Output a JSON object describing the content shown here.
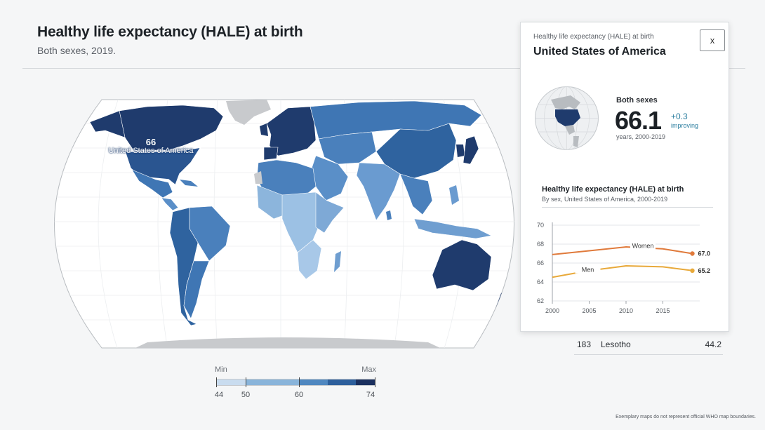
{
  "header": {
    "title": "Healthy life expectancy (HALE) at birth",
    "subtitle": "Both sexes, 2019."
  },
  "map": {
    "selected_country": "United States of America",
    "selected_value": "66",
    "colors": {
      "ocean": "#ffffff",
      "nodata": "#c8cacd",
      "outline": "#b8bcc0",
      "dark": "#1f3b6d"
    }
  },
  "legend": {
    "min_label": "Min",
    "max_label": "Max",
    "ticks": [
      "44",
      "50",
      "60",
      "74"
    ],
    "colors": [
      "#c9dcef",
      "#89b4da",
      "#4f87c0",
      "#2d5f9c",
      "#1a2f5e"
    ]
  },
  "ranking_row": {
    "rank": "183",
    "country": "Lesotho",
    "value": "44.2"
  },
  "footnote": "Exemplary maps do not represent official WHO map boundaries.",
  "detail_card": {
    "kicker": "Healthy life expectancy (HALE) at birth",
    "country": "United States of America",
    "close_label": "x",
    "stat_label": "Both sexes",
    "stat_value": "66.1",
    "stat_delta": "+0.3",
    "stat_trend": "improving",
    "stat_years": "years, 2000-2019",
    "chart_title": "Healthy life expectancy (HALE) at birth",
    "chart_subtitle": "By sex, United States of America, 2000-2019"
  },
  "chart_data": {
    "type": "line",
    "title": "Healthy life expectancy (HALE) at birth",
    "subtitle": "By sex, United States of America, 2000-2019",
    "xlim": [
      2000,
      2020
    ],
    "ylim": [
      62,
      70
    ],
    "x_ticks": [
      2000,
      2005,
      2010,
      2015
    ],
    "y_ticks": [
      62,
      64,
      66,
      68,
      70
    ],
    "grid": true,
    "series": [
      {
        "name": "Women",
        "color": "#e07a3b",
        "x": [
          2000,
          2005,
          2010,
          2015,
          2019
        ],
        "values": [
          66.9,
          67.3,
          67.7,
          67.5,
          67.0
        ],
        "end_label": "67.0"
      },
      {
        "name": "Men",
        "color": "#e8a93a",
        "x": [
          2000,
          2005,
          2010,
          2015,
          2019
        ],
        "values": [
          64.5,
          65.2,
          65.7,
          65.6,
          65.2
        ],
        "end_label": "65.2"
      }
    ]
  }
}
